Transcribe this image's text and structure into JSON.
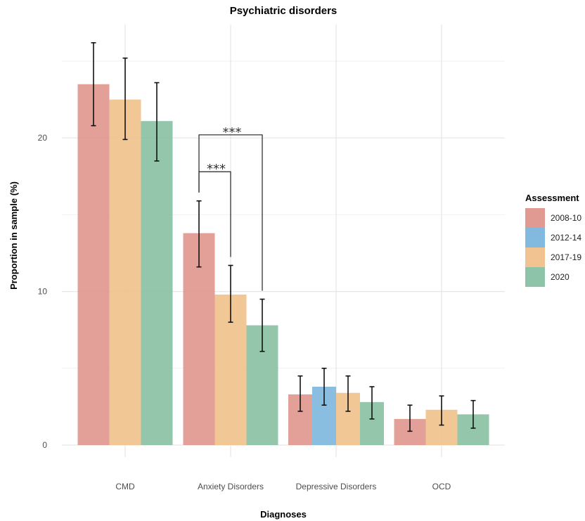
{
  "chart_data": {
    "type": "bar",
    "title": "Psychiatric disorders",
    "xlabel": "Diagnoses",
    "ylabel": "Proportion in sample (%)",
    "ylim": [
      0,
      27
    ],
    "yticks": [
      0,
      10,
      20
    ],
    "grid": true,
    "legend_title": "Assessment",
    "legend_position": "right",
    "categories": [
      "CMD",
      "Anxiety Disorders",
      "Depressive Disorders",
      "OCD"
    ],
    "series": [
      {
        "name": "2008-10",
        "color": "#dd8f86",
        "values": [
          23.5,
          13.8,
          3.3,
          1.7
        ],
        "lower": [
          20.8,
          11.6,
          2.2,
          0.9
        ],
        "upper": [
          26.2,
          15.9,
          4.5,
          2.6
        ]
      },
      {
        "name": "2012-14",
        "color": "#74b3db",
        "values": [
          null,
          null,
          3.8,
          null
        ],
        "lower": [
          null,
          null,
          2.6,
          null
        ],
        "upper": [
          null,
          null,
          5.0,
          null
        ]
      },
      {
        "name": "2017-19",
        "color": "#f0bd84",
        "values": [
          22.5,
          9.8,
          3.4,
          2.3
        ],
        "lower": [
          19.9,
          8.0,
          2.2,
          1.3
        ],
        "upper": [
          25.2,
          11.7,
          4.5,
          3.2
        ]
      },
      {
        "name": "2020",
        "color": "#81bc9e",
        "values": [
          21.1,
          7.8,
          2.8,
          2.0
        ],
        "lower": [
          18.5,
          6.1,
          1.7,
          1.1
        ],
        "upper": [
          23.6,
          9.5,
          3.8,
          2.9
        ]
      }
    ],
    "annotations": [
      {
        "text": "***",
        "category": "Anxiety Disorders",
        "from": "2008-10",
        "to": "2017-19"
      },
      {
        "text": "***",
        "category": "Anxiety Disorders",
        "from": "2008-10",
        "to": "2020"
      }
    ]
  }
}
